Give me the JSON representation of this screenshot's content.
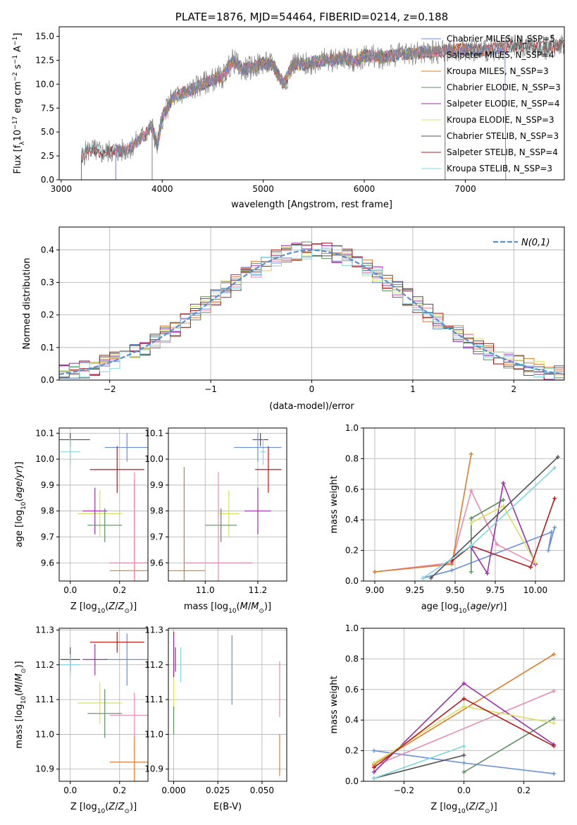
{
  "chart_data": [
    {
      "id": "spectrum",
      "type": "line",
      "title": "PLATE=1876, MJD=54464, FIBERID=0214, z=0.188",
      "xlabel": "wavelength [Angstrom, rest frame]",
      "ylabel": "Flux [f_λ 10^-17 erg cm^-2 s^-1 A^-1]",
      "xlim": [
        2980,
        7980
      ],
      "ylim": [
        0,
        16
      ],
      "xticks": [
        3000,
        4000,
        5000,
        6000,
        7000
      ],
      "yticks": [
        0.0,
        2.5,
        5.0,
        7.5,
        10.0,
        12.5,
        15.0
      ],
      "grid": false,
      "legend_position": "right",
      "data_curve": {
        "color": "#808080",
        "wavelength": [
          3200,
          3250,
          3300,
          3400,
          3500,
          3600,
          3700,
          3800,
          3900,
          3950,
          4000,
          4100,
          4200,
          4300,
          4400,
          4500,
          4600,
          4700,
          4800,
          4900,
          5000,
          5100,
          5200,
          5300,
          5400,
          5500,
          5600,
          5700,
          5800,
          5900,
          6000,
          6200,
          6400,
          6600,
          6800,
          7000,
          7200,
          7400,
          7600,
          7800,
          7980
        ],
        "flux": [
          2.3,
          3.0,
          3.2,
          2.8,
          3.0,
          3.0,
          3.5,
          4.5,
          5.5,
          3.5,
          6.5,
          8.5,
          9.0,
          9.5,
          10.0,
          10.5,
          10.8,
          12.5,
          11.5,
          11.8,
          12.2,
          12.0,
          10.0,
          12.2,
          12.0,
          12.3,
          12.5,
          12.5,
          12.8,
          12.3,
          13.0,
          12.8,
          13.2,
          13.3,
          13.5,
          13.7,
          13.5,
          13.9,
          14.0,
          13.8,
          14.3
        ]
      },
      "series": [
        {
          "name": "Chabrier MILES, N_SSP=5",
          "color": "#6a8fd8",
          "start": 3540,
          "end": 7400
        },
        {
          "name": "Salpeter MILES, N_SSP=4",
          "color": "#e88bb5",
          "start": 3540,
          "end": 7400
        },
        {
          "name": "Kroupa MILES, N_SSP=3",
          "color": "#e07a2a",
          "start": 3540,
          "end": 7400
        },
        {
          "name": "Chabrier ELODIE, N_SSP=3",
          "color": "#5c8f5f",
          "start": 3900,
          "end": 6800
        },
        {
          "name": "Salpeter ELODIE, N_SSP=4",
          "color": "#9b2fa8",
          "start": 3900,
          "end": 6800
        },
        {
          "name": "Kroupa ELODIE, N_SSP=3",
          "color": "#d8e060",
          "start": 3900,
          "end": 6800
        },
        {
          "name": "Chabrier STELIB, N_SSP=3",
          "color": "#505050",
          "start": 3200,
          "end": 7980
        },
        {
          "name": "Salpeter STELIB, N_SSP=4",
          "color": "#b01c1c",
          "start": 3200,
          "end": 7980
        },
        {
          "name": "Kroupa STELIB, N_SSP=3",
          "color": "#7fd8e0",
          "start": 3200,
          "end": 7980
        }
      ]
    },
    {
      "id": "residuals",
      "type": "line",
      "xlabel": "(data-model)/error",
      "ylabel": "Normed distribution",
      "xlim": [
        -2.5,
        2.5
      ],
      "ylim": [
        0,
        0.47
      ],
      "xticks": [
        -2,
        -1,
        0,
        1,
        2
      ],
      "yticks": [
        0.0,
        0.1,
        0.2,
        0.3,
        0.4
      ],
      "grid": true,
      "legend": "N(0,1)",
      "legend_position": "top-right",
      "gauss_color": "#5a8fd6"
    },
    {
      "id": "age_vs_Z",
      "type": "scatter",
      "xlabel": "Z [log10(Z/Z_sun)]",
      "ylabel": "age [log10(age/yr)]",
      "xlim": [
        -0.045,
        0.315
      ],
      "ylim": [
        9.53,
        10.12
      ],
      "xticks": [
        0.0,
        0.2
      ],
      "yticks": [
        9.6,
        9.7,
        9.8,
        9.9,
        10.0,
        10.1
      ],
      "grid": true,
      "points": [
        {
          "x": 0.0,
          "xerr": 0.08,
          "y": 10.075,
          "yerr": 0.025,
          "color": "#505050"
        },
        {
          "x": 0.0,
          "xerr": 0.04,
          "y": 10.028,
          "yerr": 0.05,
          "color": "#7fd8e0"
        },
        {
          "x": 0.23,
          "xerr": 0.09,
          "y": 10.045,
          "yerr": 0.055,
          "color": "#6a8fd8"
        },
        {
          "x": 0.19,
          "xerr": 0.11,
          "y": 9.96,
          "yerr": 0.09,
          "color": "#b01c1c"
        },
        {
          "x": 0.12,
          "xerr": 0.09,
          "y": 9.79,
          "yerr": 0.09,
          "color": "#d8e060"
        },
        {
          "x": 0.1,
          "xerr": 0.05,
          "y": 9.8,
          "yerr": 0.09,
          "color": "#9b2fa8"
        },
        {
          "x": 0.14,
          "xerr": 0.07,
          "y": 9.745,
          "yerr": 0.065,
          "color": "#5c8f5f"
        },
        {
          "x": 0.26,
          "xerr": 0.1,
          "y": 9.57,
          "yerr": 0.35,
          "color": "#e07a2a"
        },
        {
          "x": 0.26,
          "xerr": 0.1,
          "y": 9.6,
          "yerr": 0.35,
          "color": "#e88bb5"
        }
      ]
    },
    {
      "id": "age_vs_mass",
      "type": "scatter",
      "xlabel": "mass [log10(M/M_sun)]",
      "ylabel": "",
      "xlim": [
        10.86,
        11.31
      ],
      "ylim": [
        9.53,
        10.12
      ],
      "xticks": [
        11.0,
        11.2
      ],
      "yticks": [
        9.6,
        9.7,
        9.8,
        9.9,
        10.0,
        10.1
      ],
      "grid": true,
      "points": [
        {
          "x": 11.21,
          "xerr": 0.03,
          "y": 10.075,
          "yerr": 0.025,
          "color": "#505050"
        },
        {
          "x": 11.22,
          "xerr": 0.01,
          "y": 10.028,
          "yerr": 0.05,
          "color": "#7fd8e0"
        },
        {
          "x": 11.2,
          "xerr": 0.09,
          "y": 10.045,
          "yerr": 0.055,
          "color": "#6a8fd8"
        },
        {
          "x": 11.24,
          "xerr": 0.05,
          "y": 9.96,
          "yerr": 0.09,
          "color": "#b01c1c"
        },
        {
          "x": 11.09,
          "xerr": 0.04,
          "y": 9.79,
          "yerr": 0.09,
          "color": "#d8e060"
        },
        {
          "x": 11.2,
          "xerr": 0.05,
          "y": 9.8,
          "yerr": 0.09,
          "color": "#9b2fa8"
        },
        {
          "x": 11.06,
          "xerr": 0.06,
          "y": 9.745,
          "yerr": 0.065,
          "color": "#5c8f5f"
        },
        {
          "x": 10.92,
          "xerr": 0.08,
          "y": 9.57,
          "yerr": 0.4,
          "color": "#e07a2a"
        },
        {
          "x": 11.05,
          "xerr": 0.13,
          "y": 9.6,
          "yerr": 0.35,
          "color": "#e88bb5"
        }
      ]
    },
    {
      "id": "mass_weight_vs_age",
      "type": "line",
      "xlabel": "age [log10(age/yr)]",
      "ylabel": "mass weight",
      "xlim": [
        8.93,
        10.18
      ],
      "ylim": [
        0,
        1
      ],
      "xticks": [
        9.0,
        9.25,
        9.5,
        9.75,
        10.0
      ],
      "yticks": [
        0.0,
        0.2,
        0.4,
        0.6,
        0.8,
        1.0
      ],
      "grid": true,
      "series": [
        {
          "name": "Chabrier MILES",
          "color": "#6a8fd8",
          "x": [
            9.3,
            9.48,
            10.1,
            10.08,
            10.12
          ],
          "y": [
            0.02,
            0.07,
            0.32,
            0.2,
            0.35
          ]
        },
        {
          "name": "Salpeter MILES",
          "color": "#e88bb5",
          "x": [
            9.0,
            9.48,
            9.6,
            9.76,
            10.0
          ],
          "y": [
            0.06,
            0.12,
            0.59,
            0.24,
            0.11
          ]
        },
        {
          "name": "Kroupa MILES",
          "color": "#e07a2a",
          "x": [
            9.0,
            9.48,
            9.6
          ],
          "y": [
            0.06,
            0.11,
            0.83
          ]
        },
        {
          "name": "Chabrier ELODIE",
          "color": "#5c8f5f",
          "x": [
            9.6,
            9.6,
            9.8
          ],
          "y": [
            0.06,
            0.41,
            0.53
          ]
        },
        {
          "name": "Salpeter ELODIE",
          "color": "#9b2fa8",
          "x": [
            9.6,
            9.7,
            9.8,
            10.0
          ],
          "y": [
            0.22,
            0.05,
            0.64,
            0.11
          ]
        },
        {
          "name": "Kroupa ELODIE",
          "color": "#d8e060",
          "x": [
            9.6,
            9.8,
            10.0
          ],
          "y": [
            0.38,
            0.49,
            0.12
          ]
        },
        {
          "name": "Chabrier STELIB",
          "color": "#505050",
          "x": [
            9.35,
            10.14
          ],
          "y": [
            0.02,
            0.81
          ]
        },
        {
          "name": "Salpeter STELIB",
          "color": "#b01c1c",
          "x": [
            9.48,
            9.6,
            9.97,
            10.12
          ],
          "y": [
            0.13,
            0.23,
            0.09,
            0.54
          ]
        },
        {
          "name": "Kroupa STELIB",
          "color": "#7fd8e0",
          "x": [
            9.3,
            9.6,
            10.12
          ],
          "y": [
            0.02,
            0.23,
            0.74
          ]
        }
      ]
    },
    {
      "id": "mass_vs_Z",
      "type": "scatter",
      "xlabel": "Z [log10(Z/Z_sun)]",
      "ylabel": "mass [log10(M/M_sun)]",
      "xlim": [
        -0.045,
        0.315
      ],
      "ylim": [
        10.865,
        11.305
      ],
      "xticks": [
        0.0,
        0.2
      ],
      "yticks": [
        10.9,
        11.0,
        11.1,
        11.2,
        11.3
      ],
      "grid": true,
      "points": [
        {
          "x": 0.0,
          "xerr": 0.04,
          "y": 11.215,
          "yerr": 0.035,
          "color": "#505050"
        },
        {
          "x": 0.0,
          "xerr": 0.04,
          "y": 11.2,
          "yerr": 0.03,
          "color": "#7fd8e0"
        },
        {
          "x": 0.23,
          "xerr": 0.09,
          "y": 11.215,
          "yerr": 0.075,
          "color": "#6a8fd8"
        },
        {
          "x": 0.19,
          "xerr": 0.11,
          "y": 11.265,
          "yerr": 0.03,
          "color": "#b01c1c"
        },
        {
          "x": 0.12,
          "xerr": 0.09,
          "y": 11.09,
          "yerr": 0.06,
          "color": "#d8e060"
        },
        {
          "x": 0.1,
          "xerr": 0.05,
          "y": 11.215,
          "yerr": 0.045,
          "color": "#9b2fa8"
        },
        {
          "x": 0.14,
          "xerr": 0.07,
          "y": 11.06,
          "yerr": 0.07,
          "color": "#5c8f5f"
        },
        {
          "x": 0.26,
          "xerr": 0.1,
          "y": 10.92,
          "yerr": 0.075,
          "color": "#e07a2a"
        },
        {
          "x": 0.26,
          "xerr": 0.1,
          "y": 11.055,
          "yerr": 0.065,
          "color": "#e88bb5"
        }
      ]
    },
    {
      "id": "mass_vs_ebv",
      "type": "scatter",
      "xlabel": "E(B-V)",
      "ylabel": "",
      "xlim": [
        -0.003,
        0.064
      ],
      "ylim": [
        10.865,
        11.305
      ],
      "xticks": [
        0.0,
        0.025,
        0.05
      ],
      "yticks": [
        10.9,
        11.0,
        11.1,
        11.2,
        11.3
      ],
      "grid": true,
      "points": [
        {
          "x": 0.001,
          "y": 11.215,
          "yerr": 0.035,
          "color": "#505050"
        },
        {
          "x": 0.004,
          "y": 11.2,
          "yerr": 0.05,
          "color": "#7fd8e0"
        },
        {
          "x": 0.033,
          "y": 11.185,
          "yerr": 0.1,
          "color": "#6a8fd8"
        },
        {
          "x": 0.0,
          "y": 11.23,
          "yerr": 0.065,
          "color": "#b01c1c"
        },
        {
          "x": 0.0,
          "y": 11.09,
          "yerr": 0.07,
          "color": "#d8e060"
        },
        {
          "x": 0.0,
          "y": 11.23,
          "yerr": 0.055,
          "color": "#9b2fa8"
        },
        {
          "x": 0.0,
          "y": 11.04,
          "yerr": 0.04,
          "color": "#5c8f5f"
        },
        {
          "x": 0.06,
          "y": 10.94,
          "yerr": 0.06,
          "color": "#e07a2a"
        },
        {
          "x": 0.06,
          "y": 11.13,
          "yerr": 0.08,
          "color": "#e88bb5"
        }
      ]
    },
    {
      "id": "mass_weight_vs_Z",
      "type": "line",
      "xlabel": "Z [log10(Z/Z_sun)]",
      "ylabel": "mass weight",
      "xlim": [
        -0.335,
        0.335
      ],
      "ylim": [
        0,
        1
      ],
      "xticks": [
        -0.2,
        0.0,
        0.2
      ],
      "yticks": [
        0.0,
        0.2,
        0.4,
        0.6,
        0.8,
        1.0
      ],
      "grid": true,
      "series": [
        {
          "name": "Chabrier MILES",
          "color": "#6a8fd8",
          "x": [
            -0.3,
            0.0,
            0.3
          ],
          "y": [
            0.2,
            0.12,
            0.05
          ]
        },
        {
          "name": "Salpeter MILES",
          "color": "#e88bb5",
          "x": [
            -0.3,
            0.3
          ],
          "y": [
            0.1,
            0.59
          ]
        },
        {
          "name": "Kroupa MILES",
          "color": "#e07a2a",
          "x": [
            -0.3,
            0.3
          ],
          "y": [
            0.11,
            0.83
          ]
        },
        {
          "name": "Chabrier ELODIE",
          "color": "#5c8f5f",
          "x": [
            0.0,
            0.3
          ],
          "y": [
            0.06,
            0.41
          ]
        },
        {
          "name": "Salpeter ELODIE",
          "color": "#9b2fa8",
          "x": [
            -0.3,
            0.0,
            0.3
          ],
          "y": [
            0.06,
            0.64,
            0.24
          ]
        },
        {
          "name": "Kroupa ELODIE",
          "color": "#d8e060",
          "x": [
            -0.3,
            0.0,
            0.3
          ],
          "y": [
            0.12,
            0.49,
            0.38
          ]
        },
        {
          "name": "Chabrier STELIB",
          "color": "#505050",
          "x": [
            -0.3,
            0.0
          ],
          "y": [
            0.02,
            0.17
          ]
        },
        {
          "name": "Salpeter STELIB",
          "color": "#b01c1c",
          "x": [
            -0.3,
            0.0,
            0.3
          ],
          "y": [
            0.09,
            0.54,
            0.23
          ]
        },
        {
          "name": "Kroupa STELIB",
          "color": "#7fd8e0",
          "x": [
            -0.3,
            0.0
          ],
          "y": [
            0.02,
            0.23
          ]
        }
      ]
    }
  ]
}
